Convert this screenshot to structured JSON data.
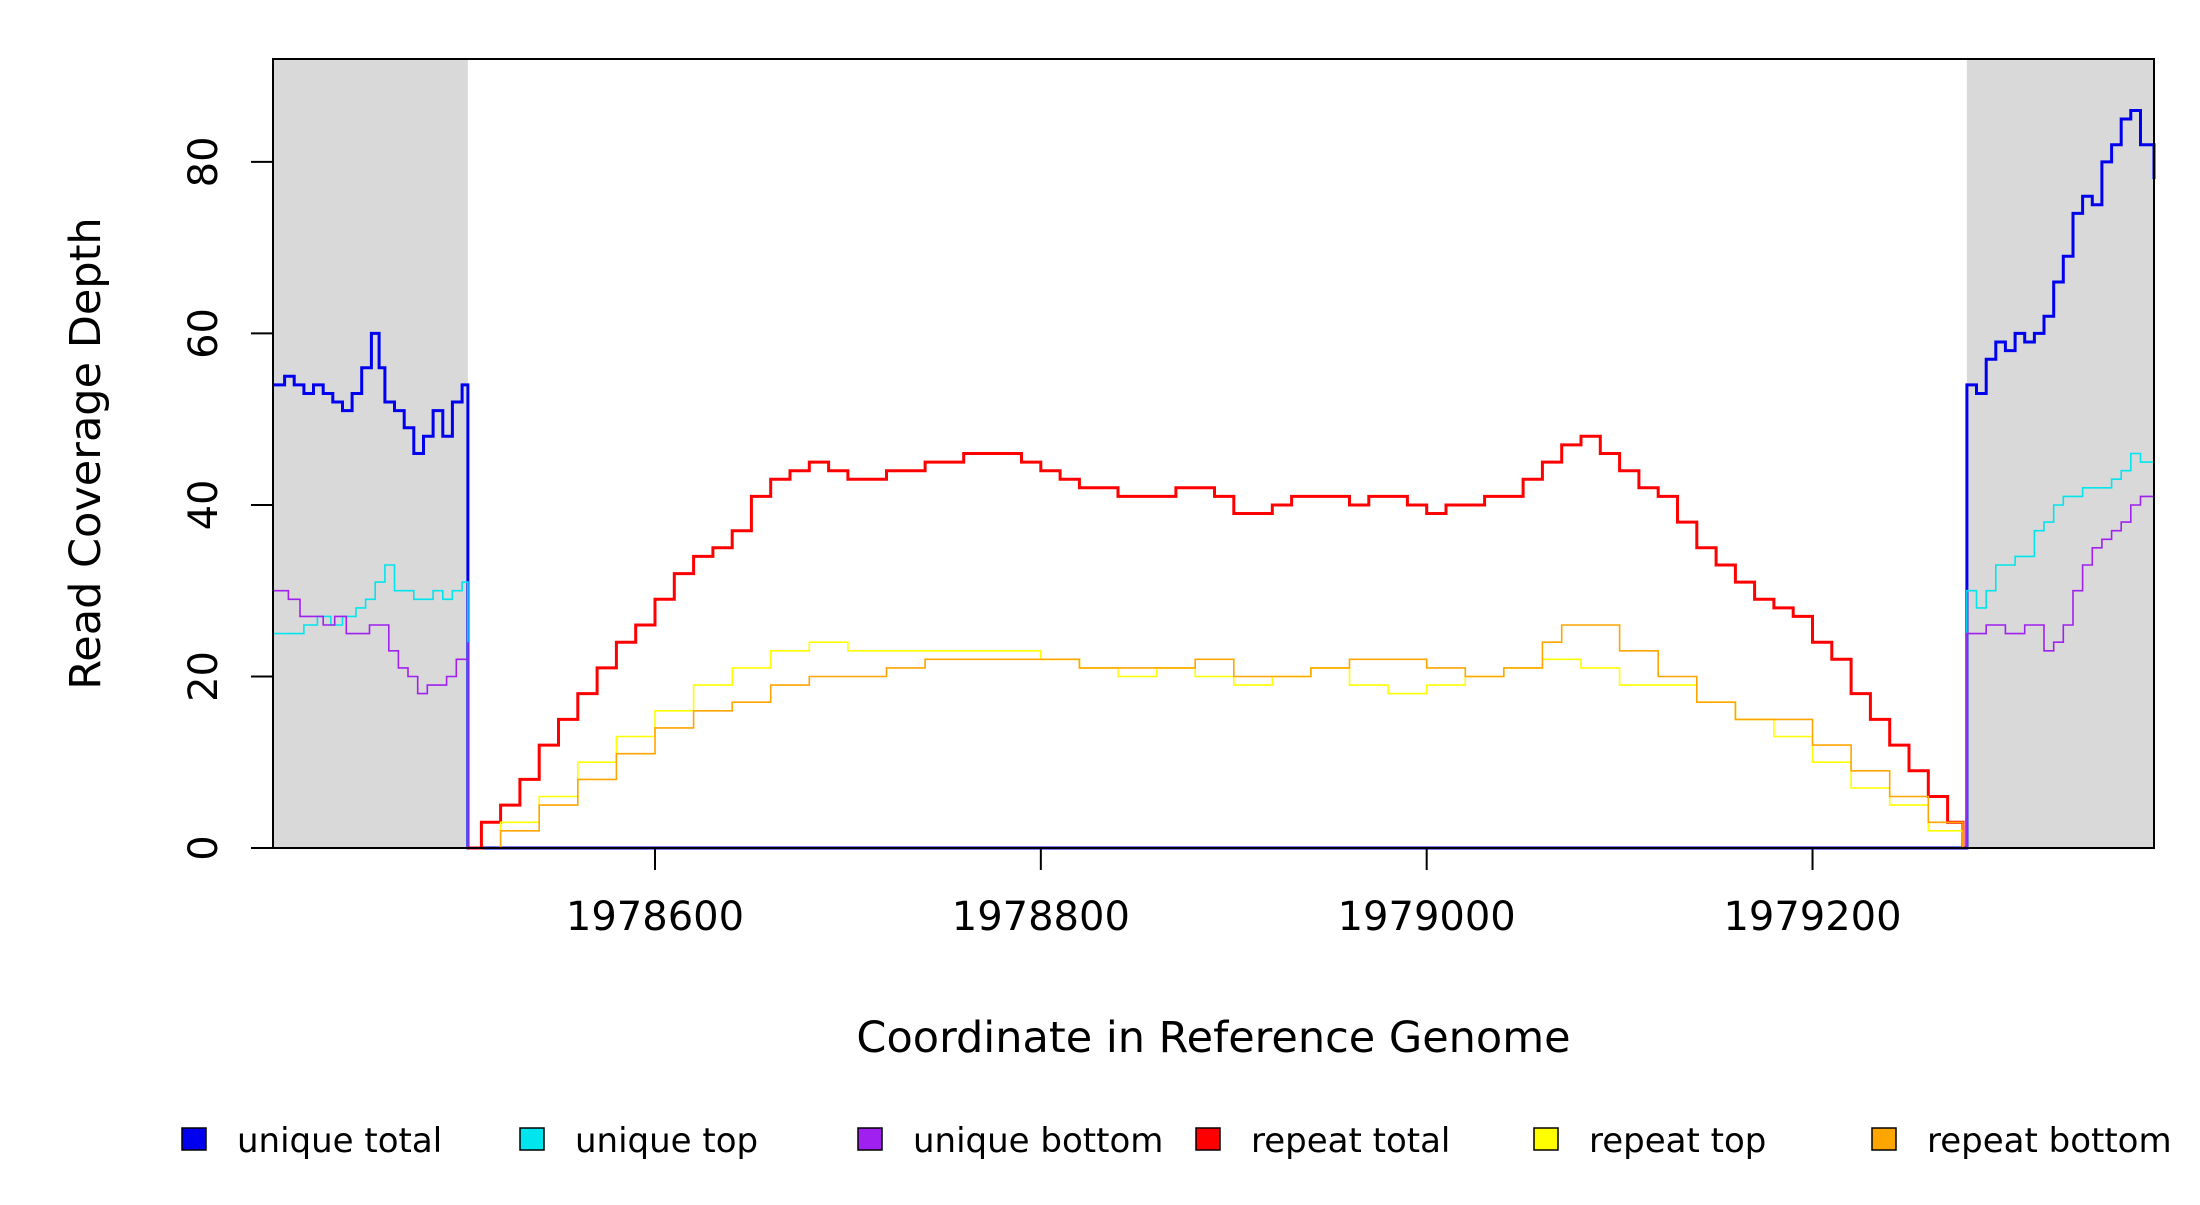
{
  "chart_data": {
    "type": "line",
    "title": "",
    "xlabel": "Coordinate in Reference Genome",
    "ylabel": "Read Coverage Depth",
    "xlim": [
      1978402,
      1979377
    ],
    "ylim": [
      0,
      92
    ],
    "x_ticks": [
      1978600,
      1978800,
      1979000,
      1979200
    ],
    "x_tick_labels": [
      "1978600",
      "1978800",
      "1979000",
      "1979200"
    ],
    "y_ticks": [
      0,
      20,
      40,
      60,
      80
    ],
    "y_tick_labels": [
      "0",
      "20",
      "40",
      "60",
      "80"
    ],
    "shaded_regions": [
      {
        "x": [
          1978402,
          1978503
        ],
        "color": "#d9d9d9"
      },
      {
        "x": [
          1979280,
          1979377
        ],
        "color": "#d9d9d9"
      }
    ],
    "grid": false,
    "legend_position": "bottom",
    "series": [
      {
        "name": "unique total",
        "color": "#0000ee",
        "x": [
          1978402,
          1978408,
          1978413,
          1978418,
          1978423,
          1978428,
          1978433,
          1978438,
          1978443,
          1978448,
          1978453,
          1978457,
          1978460,
          1978465,
          1978470,
          1978475,
          1978480,
          1978485,
          1978490,
          1978495,
          1978500,
          1978503,
          1978503,
          1978505,
          1979279,
          1979280,
          1979280,
          1979285,
          1979290,
          1979295,
          1979300,
          1979305,
          1979310,
          1979315,
          1979320,
          1979325,
          1979330,
          1979335,
          1979340,
          1979345,
          1979350,
          1979355,
          1979360,
          1979365,
          1979370,
          1979377
        ],
        "y": [
          54,
          55,
          54,
          53,
          54,
          53,
          52,
          51,
          53,
          56,
          60,
          56,
          52,
          51,
          49,
          46,
          48,
          51,
          48,
          52,
          54,
          54,
          0,
          0,
          0,
          0,
          54,
          53,
          57,
          59,
          58,
          60,
          59,
          60,
          62,
          66,
          69,
          74,
          76,
          75,
          80,
          82,
          85,
          86,
          82,
          78
        ]
      },
      {
        "name": "unique top",
        "color": "#00e5ee",
        "x": [
          1978402,
          1978410,
          1978418,
          1978425,
          1978432,
          1978438,
          1978445,
          1978450,
          1978455,
          1978460,
          1978465,
          1978470,
          1978475,
          1978480,
          1978485,
          1978490,
          1978495,
          1978500,
          1978503,
          1978503,
          1978505,
          1979279,
          1979280,
          1979280,
          1979285,
          1979290,
          1979295,
          1979300,
          1979305,
          1979310,
          1979315,
          1979320,
          1979325,
          1979330,
          1979335,
          1979340,
          1979345,
          1979350,
          1979355,
          1979360,
          1979365,
          1979370,
          1979377
        ],
        "y": [
          25,
          25,
          26,
          27,
          26,
          27,
          28,
          29,
          31,
          33,
          30,
          30,
          29,
          29,
          30,
          29,
          30,
          31,
          30,
          0,
          0,
          0,
          0,
          30,
          28,
          30,
          33,
          33,
          34,
          34,
          37,
          38,
          40,
          41,
          41,
          42,
          42,
          42,
          43,
          44,
          46,
          45,
          40
        ]
      },
      {
        "name": "unique bottom",
        "color": "#a020f0",
        "x": [
          1978402,
          1978410,
          1978416,
          1978422,
          1978428,
          1978434,
          1978440,
          1978446,
          1978452,
          1978457,
          1978462,
          1978467,
          1978472,
          1978477,
          1978482,
          1978487,
          1978492,
          1978497,
          1978503,
          1978503,
          1978505,
          1979279,
          1979280,
          1979280,
          1979290,
          1979300,
          1979310,
          1979320,
          1979325,
          1979330,
          1979335,
          1979340,
          1979345,
          1979350,
          1979355,
          1979360,
          1979365,
          1979370,
          1979377
        ],
        "y": [
          30,
          29,
          27,
          27,
          26,
          27,
          25,
          25,
          26,
          26,
          23,
          21,
          20,
          18,
          19,
          19,
          20,
          22,
          24,
          0,
          0,
          0,
          0,
          25,
          26,
          25,
          26,
          23,
          24,
          26,
          30,
          33,
          35,
          36,
          37,
          38,
          40,
          41,
          39
        ]
      },
      {
        "name": "repeat total",
        "color": "#ff0000",
        "x": [
          1978503,
          1978510,
          1978520,
          1978530,
          1978540,
          1978550,
          1978560,
          1978570,
          1978580,
          1978590,
          1978600,
          1978610,
          1978620,
          1978630,
          1978640,
          1978650,
          1978660,
          1978670,
          1978680,
          1978690,
          1978700,
          1978710,
          1978720,
          1978730,
          1978740,
          1978750,
          1978760,
          1978770,
          1978780,
          1978790,
          1978800,
          1978810,
          1978820,
          1978830,
          1978840,
          1978850,
          1978860,
          1978870,
          1978880,
          1978890,
          1978900,
          1978910,
          1978920,
          1978930,
          1978940,
          1978950,
          1978960,
          1978970,
          1978980,
          1978990,
          1979000,
          1979010,
          1979020,
          1979030,
          1979040,
          1979050,
          1979060,
          1979070,
          1979080,
          1979090,
          1979100,
          1979110,
          1979120,
          1979130,
          1979140,
          1979150,
          1979160,
          1979170,
          1979180,
          1979190,
          1979200,
          1979210,
          1979220,
          1979230,
          1979240,
          1979250,
          1979260,
          1979270,
          1979278
        ],
        "y": [
          0,
          3,
          5,
          8,
          12,
          15,
          18,
          21,
          24,
          26,
          29,
          32,
          34,
          35,
          37,
          41,
          43,
          44,
          45,
          44,
          43,
          43,
          44,
          44,
          45,
          45,
          46,
          46,
          46,
          45,
          44,
          43,
          42,
          42,
          41,
          41,
          41,
          42,
          42,
          41,
          39,
          39,
          40,
          41,
          41,
          41,
          40,
          41,
          41,
          40,
          39,
          40,
          40,
          41,
          41,
          43,
          45,
          47,
          48,
          46,
          44,
          42,
          41,
          38,
          35,
          33,
          31,
          29,
          28,
          27,
          24,
          22,
          18,
          15,
          12,
          9,
          6,
          3,
          0
        ]
      },
      {
        "name": "repeat top",
        "color": "#ffff00",
        "x": [
          1978503,
          1978520,
          1978540,
          1978560,
          1978580,
          1978600,
          1978620,
          1978640,
          1978660,
          1978680,
          1978700,
          1978720,
          1978740,
          1978760,
          1978780,
          1978800,
          1978820,
          1978840,
          1978860,
          1978880,
          1978900,
          1978920,
          1978940,
          1978960,
          1978980,
          1979000,
          1979020,
          1979040,
          1979060,
          1979080,
          1979100,
          1979120,
          1979140,
          1979160,
          1979180,
          1979200,
          1979220,
          1979240,
          1979260,
          1979278
        ],
        "y": [
          0,
          3,
          6,
          10,
          13,
          16,
          19,
          21,
          23,
          24,
          23,
          23,
          23,
          23,
          23,
          22,
          21,
          20,
          21,
          20,
          19,
          20,
          21,
          19,
          18,
          19,
          20,
          21,
          22,
          21,
          19,
          19,
          17,
          15,
          13,
          10,
          7,
          5,
          2,
          0
        ]
      },
      {
        "name": "repeat bottom",
        "color": "#ffa500",
        "x": [
          1978503,
          1978520,
          1978540,
          1978560,
          1978580,
          1978600,
          1978620,
          1978640,
          1978660,
          1978680,
          1978700,
          1978720,
          1978740,
          1978760,
          1978780,
          1978800,
          1978820,
          1978840,
          1978860,
          1978880,
          1978900,
          1978920,
          1978940,
          1978960,
          1978980,
          1979000,
          1979020,
          1979040,
          1979060,
          1979070,
          1979080,
          1979100,
          1979120,
          1979140,
          1979160,
          1979180,
          1979200,
          1979220,
          1979240,
          1979260,
          1979278
        ],
        "y": [
          0,
          2,
          5,
          8,
          11,
          14,
          16,
          17,
          19,
          20,
          20,
          21,
          22,
          22,
          22,
          22,
          21,
          21,
          21,
          22,
          20,
          20,
          21,
          22,
          22,
          21,
          20,
          21,
          24,
          26,
          26,
          23,
          20,
          17,
          15,
          15,
          12,
          9,
          6,
          3,
          0
        ]
      }
    ]
  }
}
